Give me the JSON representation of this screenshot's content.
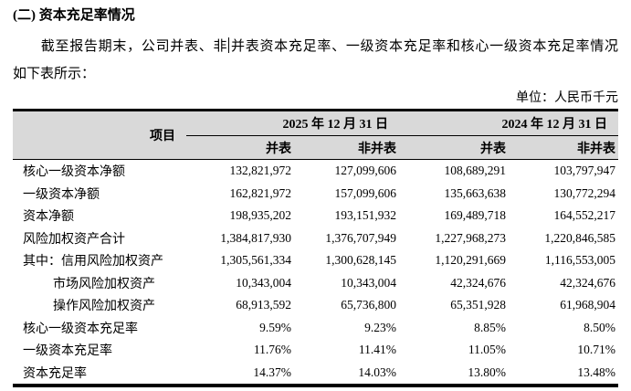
{
  "page": {
    "section_title": "(二) 资本充足率情况",
    "intro_line1_before_caret": "截至报告期末，公司并表、非",
    "intro_line1_after_caret": "并表资本充足率、一级资本充足率和核心一级资本充足率情况",
    "intro_line2": "如下表所示：",
    "unit_label": "单位：人民币千元"
  },
  "table": {
    "header": {
      "item_col": "项目",
      "date_2025": "2025 年 12 月 31 日",
      "date_2024": "2024 年 12 月 31 日",
      "sub_cols": [
        "并表",
        "非并表",
        "并表",
        "非并表"
      ]
    },
    "rows": [
      {
        "label": "核心一级资本净额",
        "indent": 0,
        "values": [
          "132,821,972",
          "127,099,606",
          "108,689,291",
          "103,797,947"
        ]
      },
      {
        "label": "一级资本净额",
        "indent": 0,
        "values": [
          "162,821,972",
          "157,099,606",
          "135,663,638",
          "130,772,294"
        ]
      },
      {
        "label": "资本净额",
        "indent": 0,
        "values": [
          "198,935,202",
          "193,151,932",
          "169,489,718",
          "164,552,217"
        ]
      },
      {
        "label": "风险加权资产合计",
        "indent": 0,
        "values": [
          "1,384,817,930",
          "1,376,707,949",
          "1,227,968,273",
          "1,220,846,585"
        ]
      },
      {
        "label": "其中：信用风险加权资产",
        "indent": 0,
        "values": [
          "1,305,561,334",
          "1,300,628,145",
          "1,120,291,669",
          "1,116,553,005"
        ]
      },
      {
        "label": "市场风险加权资产",
        "indent": 1,
        "values": [
          "10,343,004",
          "10,343,004",
          "42,324,676",
          "42,324,676"
        ]
      },
      {
        "label": "操作风险加权资产",
        "indent": 1,
        "values": [
          "68,913,592",
          "65,736,800",
          "65,351,928",
          "61,968,904"
        ]
      },
      {
        "label": "核心一级资本充足率",
        "indent": 0,
        "values": [
          "9.59%",
          "9.23%",
          "8.85%",
          "8.50%"
        ]
      },
      {
        "label": "一级资本充足率",
        "indent": 0,
        "values": [
          "11.76%",
          "11.41%",
          "11.05%",
          "10.71%"
        ]
      },
      {
        "label": "资本充足率",
        "indent": 0,
        "values": [
          "14.37%",
          "14.03%",
          "13.80%",
          "13.48%"
        ]
      }
    ],
    "colors": {
      "header_bg": "#d9d9d9",
      "border": "#000000",
      "text": "#000000"
    }
  }
}
